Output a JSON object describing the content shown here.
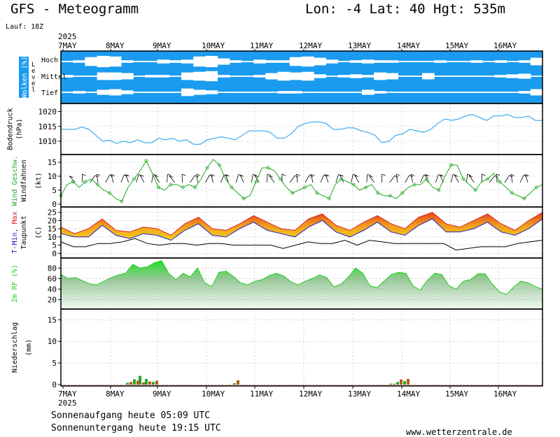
{
  "header": {
    "title": "GFS - Meteogramm",
    "location": "Lon: -4 Lat: 40 Hgt: 535m",
    "run": "Lauf: 18Z",
    "year": "2025"
  },
  "footer": {
    "sunrise": "Sonnenaufgang heute 05:09 UTC",
    "sunset": "Sonnenuntergang heute 19:15 UTC",
    "site": "www.wetterzentrale.de"
  },
  "colors": {
    "cloud_sky": "#1a9bef",
    "pressure": "#1a9bef",
    "wind": "#22aa22",
    "tmin": "#2222cc",
    "tmax": "#dd2222",
    "rh": "#22cc22",
    "rain_conv": "#22aa22",
    "rain_large": "#b35a1f"
  },
  "chart_data": [
    {
      "type": "heatmap",
      "id": "clouds",
      "ylabel": "Wolken (%)",
      "level_axis_label": "Level",
      "levels": [
        "Hoch",
        "Mittel",
        "Tief"
      ],
      "x_dates": [
        "7MAY",
        "8MAY",
        "9MAY",
        "10MAY",
        "11MAY",
        "12MAY",
        "13MAY",
        "14MAY",
        "15MAY",
        "16MAY"
      ],
      "hoch": [
        0.1,
        0.2,
        0.7,
        0.9,
        0.8,
        0.2,
        0.1,
        0.1,
        0.3,
        0.2,
        0.3,
        0.8,
        0.9,
        0.5,
        0.2,
        0.1,
        0.3,
        0.2,
        0.2,
        0.7,
        0.8,
        0.6,
        0.3,
        0.1,
        0.2,
        0.3,
        0.2,
        0.2,
        0.1,
        0.1,
        0.1,
        0.2,
        0.1,
        0.1,
        0.2,
        0.1,
        0.2,
        0.1,
        0.2,
        0.6
      ],
      "mittel": [
        0.2,
        0.1,
        0.1,
        0.6,
        0.6,
        0.5,
        0.1,
        0.2,
        0.2,
        0.1,
        0.6,
        0.7,
        0.8,
        0.2,
        0.1,
        0.1,
        0.2,
        0.5,
        0.7,
        0.6,
        0.7,
        0.3,
        0.1,
        0.2,
        0.3,
        0.2,
        0.6,
        0.5,
        0.1,
        0.1,
        0.5,
        0.1,
        0.1,
        0.1,
        0.1,
        0.1,
        0.2,
        0.3,
        0.4,
        0.1
      ],
      "tief": [
        0.1,
        0.2,
        0.1,
        0.4,
        0.5,
        0.3,
        0.1,
        0.1,
        0.1,
        0.1,
        0.6,
        0.4,
        0.3,
        0.1,
        0.1,
        0.1,
        0.1,
        0.1,
        0.2,
        0.2,
        0.1,
        0.1,
        0.1,
        0.1,
        0.1,
        0.4,
        0.2,
        0.1,
        0.1,
        0.1,
        0.1,
        0.1,
        0.1,
        0.1,
        0.1,
        0.1,
        0.1,
        0.1,
        0.2,
        0.5
      ]
    },
    {
      "type": "line",
      "id": "pressure",
      "ylabel": "Bodendruck",
      "unit": "(hPa)",
      "ylim": [
        1006,
        1022
      ],
      "yticks": [
        1010,
        1015,
        1020
      ],
      "values": [
        1014.0,
        1014.0,
        1014.0,
        1014.8,
        1014.0,
        1012.0,
        1010.0,
        1010.3,
        1009.3,
        1010.0,
        1009.5,
        1010.5,
        1009.5,
        1009.5,
        1011.0,
        1010.5,
        1011.0,
        1010.0,
        1010.5,
        1009.0,
        1009.0,
        1010.5,
        1011.0,
        1011.5,
        1011.0,
        1010.5,
        1012.0,
        1013.5,
        1013.5,
        1013.5,
        1013.0,
        1011.0,
        1011.0,
        1012.5,
        1015.0,
        1016.0,
        1016.5,
        1016.5,
        1016.0,
        1014.0,
        1014.0,
        1014.5,
        1014.5,
        1013.5,
        1013.0,
        1012.0,
        1009.5,
        1010.0,
        1012.0,
        1012.5,
        1014.0,
        1013.5,
        1013.0,
        1014.0,
        1016.0,
        1017.5,
        1017.0,
        1017.5,
        1018.5,
        1019.0,
        1018.0,
        1017.0,
        1018.5,
        1018.5,
        1019.0,
        1018.0,
        1018.0,
        1018.5,
        1017.0,
        1017.0
      ]
    },
    {
      "type": "line",
      "id": "wind",
      "ylabel": "Wind Geschw.",
      "ylabel2": "Windfahnen",
      "unit": "(kt)",
      "ylim": [
        -0.5,
        17
      ],
      "yticks": [
        0,
        5,
        10,
        15
      ],
      "values": [
        3,
        7,
        8,
        6,
        8,
        9,
        7,
        5,
        4,
        2,
        1,
        6,
        9,
        12,
        15.5,
        11,
        6,
        5,
        7,
        7,
        6,
        7,
        6,
        9,
        13,
        16,
        14,
        9,
        6,
        4,
        2,
        3,
        8,
        13,
        13,
        12,
        9,
        6,
        4,
        5,
        6,
        7,
        4,
        3,
        2,
        7,
        9,
        8,
        7,
        5,
        6,
        7,
        4,
        3,
        3,
        2,
        4,
        6,
        7,
        7,
        9,
        6,
        5,
        10,
        14,
        14,
        9,
        7,
        5,
        8,
        9,
        11,
        8,
        6,
        4,
        3,
        2,
        4,
        6,
        7
      ]
    },
    {
      "type": "area",
      "id": "temperature",
      "ylabel": "T-Min, Max",
      "ylabel2": "Taupunkt",
      "unit": "(C)",
      "ylim": [
        -2,
        27
      ],
      "yticks": [
        0,
        5,
        10,
        15,
        20,
        25
      ],
      "tmax": [
        16,
        12,
        15,
        21,
        14,
        13,
        16,
        15,
        11,
        18,
        22,
        15,
        14,
        18,
        23,
        19,
        15,
        14,
        21,
        24,
        17,
        14,
        19,
        23,
        18,
        15,
        22,
        25,
        18,
        16,
        20,
        24,
        18,
        14,
        20,
        25
      ],
      "tmin": [
        12,
        10,
        10,
        17,
        11,
        9,
        12,
        11,
        8,
        14,
        18,
        11,
        10,
        15,
        19,
        14,
        12,
        10,
        16,
        20,
        13,
        10,
        14,
        19,
        13,
        11,
        17,
        21,
        13,
        13,
        15,
        19,
        13,
        11,
        15,
        21
      ],
      "dewpoint": [
        7,
        4,
        4,
        6,
        6,
        7,
        9,
        6,
        5,
        6,
        6,
        5,
        6,
        6,
        5,
        5,
        5,
        5,
        3,
        5,
        7,
        6,
        6,
        8,
        5,
        8,
        7,
        6,
        6,
        6,
        6,
        6,
        2,
        3,
        4,
        4,
        4,
        6,
        7,
        8
      ]
    },
    {
      "type": "area",
      "id": "humidity",
      "ylabel": "2m RF (%)",
      "ylim": [
        5,
        95
      ],
      "yticks": [
        20,
        40,
        60,
        80
      ],
      "values": [
        68,
        60,
        62,
        56,
        50,
        48,
        55,
        62,
        67,
        70,
        87,
        80,
        82,
        90,
        94,
        70,
        58,
        70,
        63,
        80,
        52,
        45,
        72,
        74,
        64,
        52,
        48,
        55,
        58,
        66,
        70,
        65,
        54,
        48,
        55,
        60,
        67,
        62,
        44,
        50,
        63,
        80,
        70,
        46,
        43,
        56,
        68,
        72,
        70,
        46,
        38,
        57,
        70,
        68,
        46,
        40,
        55,
        58,
        69,
        69,
        50,
        35,
        30,
        44,
        55,
        52,
        45,
        40
      ]
    },
    {
      "type": "bar",
      "id": "precipitation",
      "ylabel": "Niederschlag",
      "unit": "(mm)",
      "ylim": [
        0,
        17
      ],
      "yticks": [
        0,
        5,
        10,
        15
      ],
      "series": [
        {
          "values": [
            0.4,
            1.2,
            2.0,
            1.3,
            0.6,
            0.3,
            0.2,
            0.6,
            0.8
          ]
        },
        {
          "values": [
            0.6,
            0.9,
            0.5,
            0.7,
            0.9,
            1.0,
            0.2,
            1.2,
            1.3
          ]
        }
      ]
    }
  ],
  "x_axis": {
    "dates": [
      "7MAY",
      "8MAY",
      "9MAY",
      "10MAY",
      "11MAY",
      "12MAY",
      "13MAY",
      "14MAY",
      "15MAY",
      "16MAY"
    ],
    "year": "2025"
  }
}
